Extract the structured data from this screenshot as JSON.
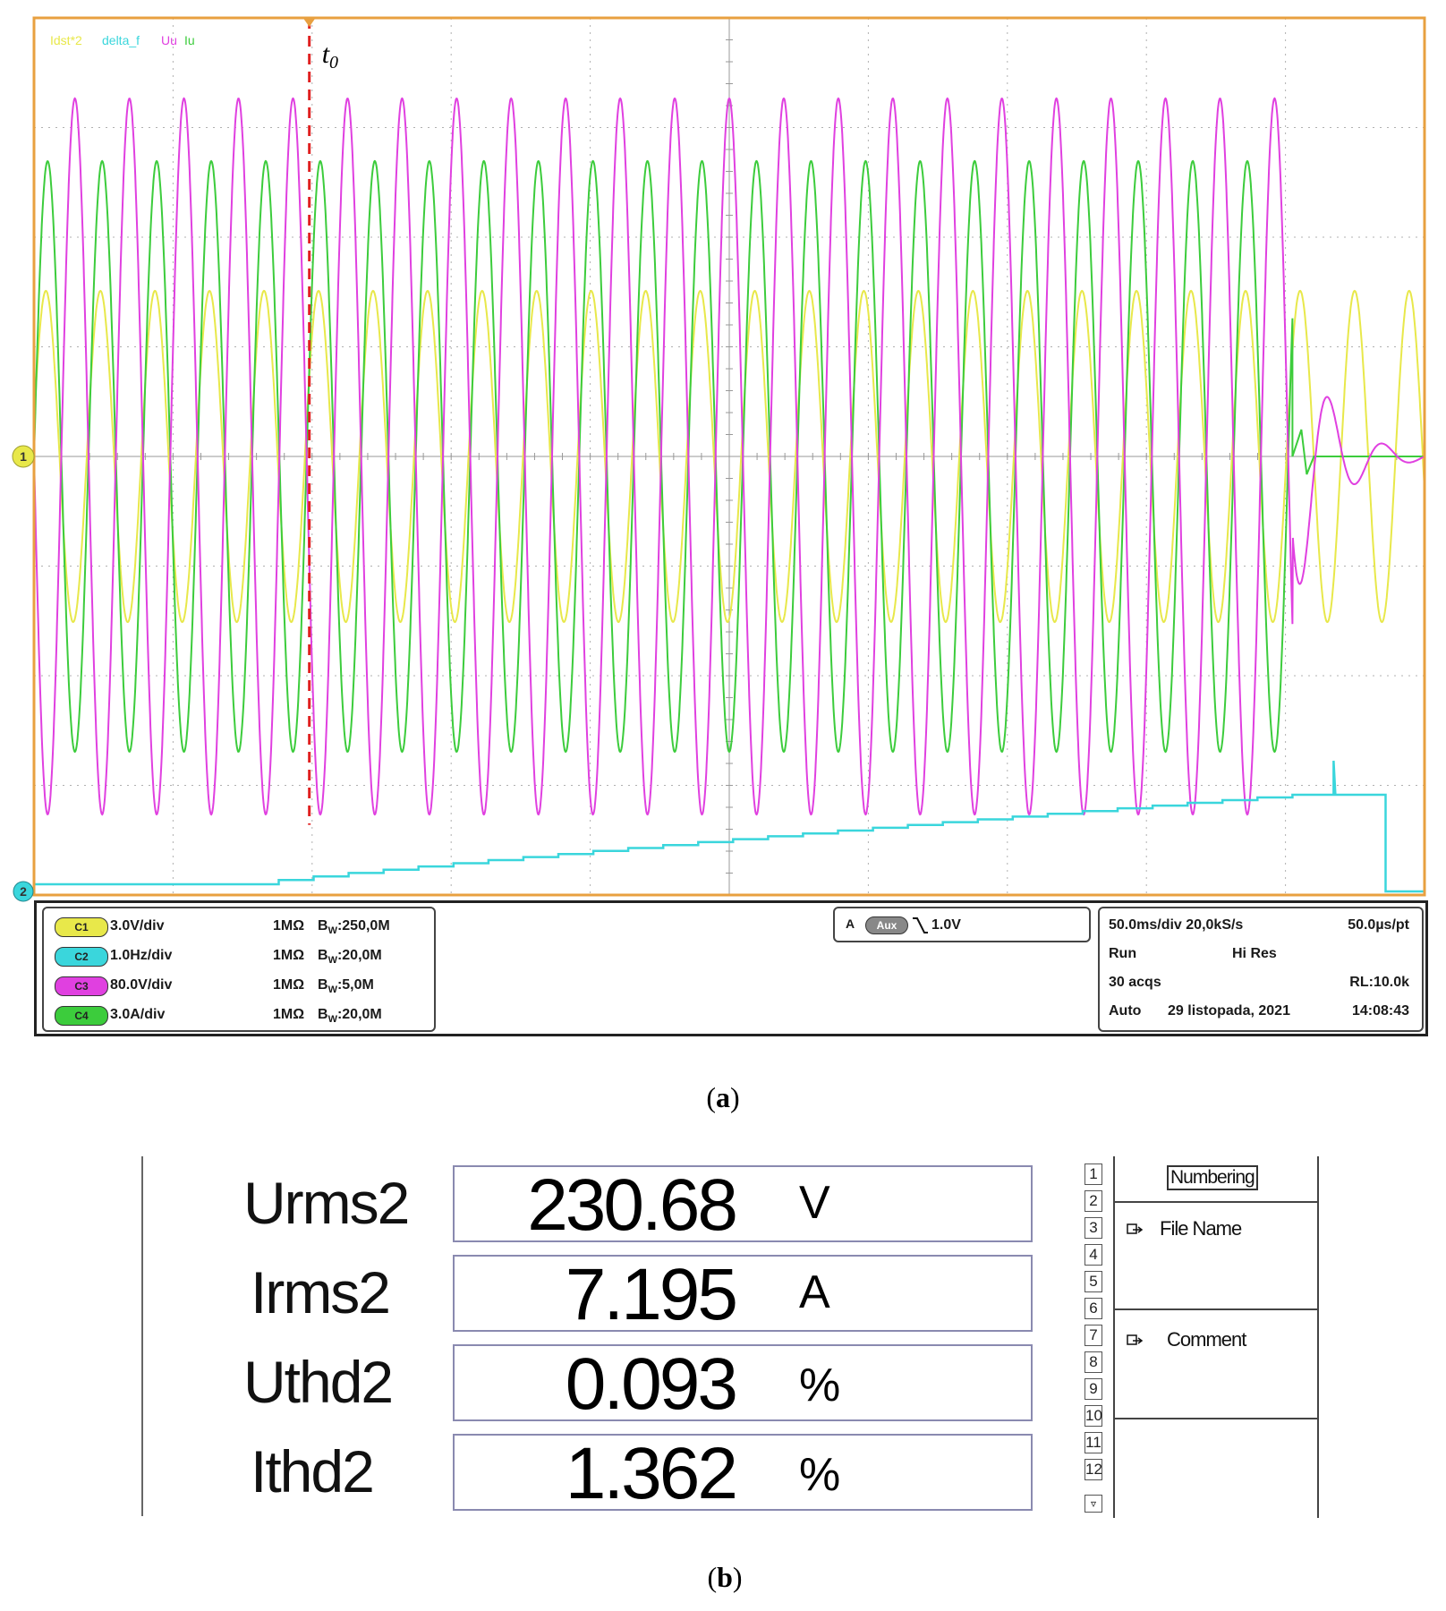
{
  "panel_a": {
    "legend": [
      {
        "label": "Idst*2",
        "color": "#e8e84a"
      },
      {
        "label": "delta_f",
        "color": "#3ad6dc"
      },
      {
        "label": "Uu",
        "color": "#e040e0"
      },
      {
        "label": "Iu",
        "color": "#3ccc3c"
      }
    ],
    "marker_label": "t",
    "marker_sub": "0",
    "ch1_marker": "1",
    "ch2_marker": "2",
    "channels": [
      {
        "pill": "C1",
        "scale": "3.0V/div",
        "imp": "1MΩ",
        "bw_prefix": "B",
        "bw_sub": "W",
        "bw": ":250,0M",
        "color": "#e8e84a"
      },
      {
        "pill": "C2",
        "scale": "1.0Hz/div",
        "imp": "1MΩ",
        "bw_prefix": "B",
        "bw_sub": "W",
        "bw": ":20,0M",
        "color": "#3ad6dc"
      },
      {
        "pill": "C3",
        "scale": "80.0V/div",
        "imp": "1MΩ",
        "bw_prefix": "B",
        "bw_sub": "W",
        "bw": ":5,0M",
        "color": "#e040e0"
      },
      {
        "pill": "C4",
        "scale": "3.0A/div",
        "imp": "1MΩ",
        "bw_prefix": "B",
        "bw_sub": "W",
        "bw": ":20,0M",
        "color": "#3ccc3c"
      }
    ],
    "trigger": {
      "mode": "A",
      "source": "Aux",
      "level": "1.0V"
    },
    "timebase": {
      "row1_a": "50.0ms/div 20,0kS/s",
      "row1_b": "50.0µs/pt",
      "row2_a": "Run",
      "row2_b": "Hi Res",
      "row3_a": "30 acqs",
      "row3_b": "RL:10.0k",
      "row4_a": "Auto",
      "row4_b": "29 listopada, 2021",
      "row4_c": "14:08:43"
    },
    "caption_letter": "a",
    "colors": {
      "frame": "#e8a040",
      "grid": "#b0b0b0",
      "marker": "#e02020"
    }
  },
  "panel_b": {
    "measurements": [
      {
        "label": "Urms2",
        "value": "230.68",
        "unit": "V"
      },
      {
        "label": "Irms2",
        "value": "7.195",
        "unit": "A"
      },
      {
        "label": "Uthd2",
        "value": "0.093",
        "unit": "%"
      },
      {
        "label": "Ithd2",
        "value": "1.362",
        "unit": "%"
      }
    ],
    "side_numbers": [
      "1",
      "2",
      "3",
      "4",
      "5",
      "6",
      "7",
      "8",
      "9",
      "10",
      "11",
      "12"
    ],
    "side_menu": {
      "numbering": "Numbering",
      "file_name": "File Name",
      "comment": "Comment"
    },
    "caption_letter": "b"
  }
}
